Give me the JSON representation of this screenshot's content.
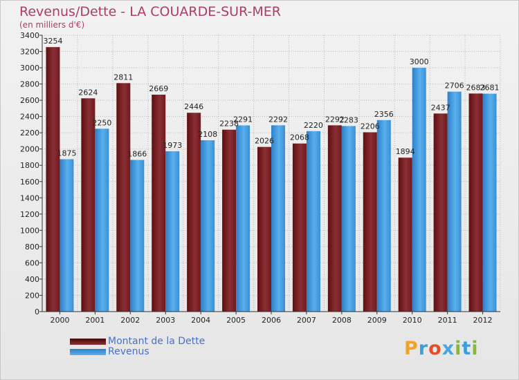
{
  "title": "Revenus/Dette - LA COUARDE-SUR-MER",
  "subtitle": "(en milliers d'€)",
  "logo": {
    "letters": [
      {
        "char": "P",
        "color": "#f0a32a"
      },
      {
        "char": "r",
        "color": "#3aa0dc"
      },
      {
        "char": "o",
        "color": "#e44f2a"
      },
      {
        "char": "x",
        "color": "#4aa4df"
      },
      {
        "char": "i",
        "color": "#86b937"
      },
      {
        "char": "t",
        "color": "#3aa0dc"
      },
      {
        "char": "i",
        "color": "#86b937"
      }
    ]
  },
  "colors": {
    "dette_dark": "#5e0f0f",
    "dette_light": "#8a2f35",
    "revenus_dark": "#2e7fc6",
    "revenus_light": "#59b0ee",
    "axis": "#333333",
    "grid": "#bbbbbb"
  },
  "chart_data": {
    "type": "bar",
    "title": "Revenus/Dette - LA COUARDE-SUR-MER",
    "subtitle": "(en milliers d'€)",
    "categories": [
      "2000",
      "2001",
      "2002",
      "2003",
      "2004",
      "2005",
      "2006",
      "2007",
      "2008",
      "2009",
      "2010",
      "2011",
      "2012"
    ],
    "series": [
      {
        "name": "Montant de la Dette",
        "values": [
          3254,
          2624,
          2811,
          2669,
          2446,
          2238,
          2026,
          2068,
          2292,
          2206,
          1894,
          2437,
          2683
        ]
      },
      {
        "name": "Revenus",
        "values": [
          1875,
          2250,
          1866,
          1973,
          2108,
          2291,
          2292,
          2220,
          2283,
          2356,
          3000,
          2706,
          2681
        ]
      }
    ],
    "ylim": [
      0,
      3400
    ],
    "yticks": [
      "0",
      "200",
      "400",
      "600",
      "800",
      "1000",
      "1200",
      "1400",
      "1600",
      "1800",
      "2000",
      "2200",
      "2400",
      "2600",
      "2800",
      "3000",
      "3200",
      "3400"
    ],
    "xlabel": "",
    "ylabel": "",
    "grid": true,
    "legend_position": "bottom-left"
  }
}
